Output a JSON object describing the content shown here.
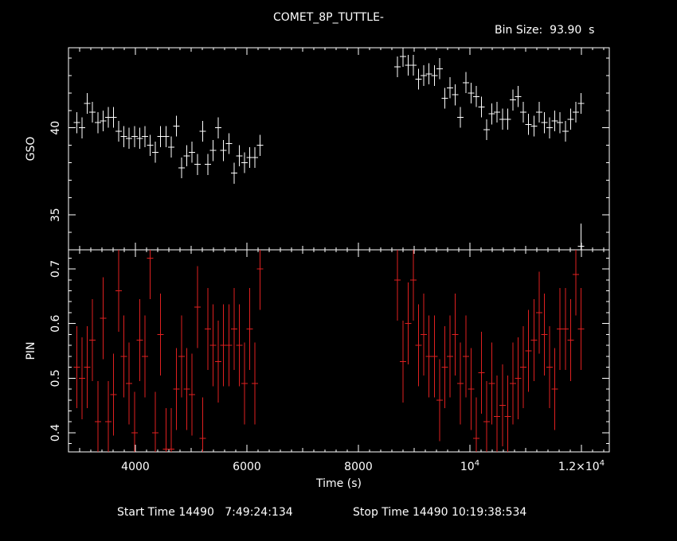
{
  "title": "COMET_8P_TUTTLE-",
  "bin_size_label": "Bin Size:  93.90  s",
  "start_time_label": "Start Time 14490   7:49:24:134",
  "stop_time_label": "Stop Time 14490 10:19:38:534",
  "chart_data": [
    {
      "panel": "top",
      "type": "scatter",
      "ylabel": "GSO",
      "xlim": [
        2800,
        12500
      ],
      "ylim": [
        33.0,
        44.6
      ],
      "yticks_major": [
        35,
        40
      ],
      "yticklabels": [
        "35",
        "40"
      ],
      "color": "#ffffff",
      "series": [
        {
          "x": [
            2949,
            3043,
            3137,
            3231,
            3325,
            3419,
            3513,
            3607,
            3701,
            3795,
            3889,
            3983,
            4077,
            4171,
            4265,
            4359,
            4453,
            4547,
            4641,
            4735,
            4829,
            4923,
            5017,
            5111,
            5205,
            5299,
            5393,
            5487,
            5581,
            5675,
            5769,
            5863,
            5957,
            6051,
            6145,
            6239
          ],
          "y": [
            40.3,
            40.0,
            41.4,
            40.9,
            40.3,
            40.4,
            40.6,
            40.6,
            39.8,
            39.5,
            39.4,
            39.5,
            39.4,
            39.5,
            39.0,
            38.6,
            39.5,
            39.5,
            38.9,
            40.1,
            37.7,
            38.4,
            38.6,
            37.9,
            39.8,
            37.9,
            38.7,
            40.0,
            38.7,
            39.1,
            37.4,
            38.4,
            38.0,
            38.3,
            38.3,
            39.0
          ],
          "yerr": 0.6
        },
        {
          "x": [
            8703,
            8797,
            8891,
            8985,
            9079,
            9173,
            9267,
            9361,
            9455,
            9549,
            9643,
            9737,
            9831,
            9925,
            10019,
            10113,
            10207,
            10301,
            10395,
            10489,
            10583,
            10677,
            10771,
            10865,
            10959,
            11053,
            11147,
            11241,
            11335,
            11429,
            11523,
            11617,
            11711,
            11805,
            11899,
            11993
          ],
          "y": [
            43.5,
            44.1,
            43.6,
            43.6,
            42.8,
            43.0,
            43.1,
            43.0,
            43.4,
            41.7,
            42.3,
            41.9,
            40.6,
            42.6,
            42.0,
            41.8,
            41.2,
            39.9,
            40.8,
            40.9,
            40.5,
            40.5,
            41.6,
            41.8,
            40.9,
            40.2,
            40.1,
            40.9,
            40.3,
            40.0,
            40.4,
            40.3,
            39.8,
            40.5,
            40.9,
            41.4
          ],
          "yerr": 0.6
        },
        {
          "x": [
            11993
          ],
          "y": [
            33.2
          ],
          "yerr": 1.3
        }
      ]
    },
    {
      "panel": "bottom",
      "type": "scatter",
      "xlabel": "Time (s)",
      "ylabel": "PIN",
      "xlim": [
        2800,
        12500
      ],
      "ylim": [
        0.365,
        0.735
      ],
      "yticks_major": [
        0.4,
        0.5,
        0.6,
        0.7
      ],
      "yticklabels": [
        "0.4",
        "0.5",
        "0.6",
        "0.7"
      ],
      "xticks_major": [
        4000,
        6000,
        8000,
        10000,
        12000
      ],
      "xticklabels": [
        "4000",
        "6000",
        "8000",
        "10^4",
        "1.2×10^4"
      ],
      "color": "#e02020",
      "series": [
        {
          "x": [
            2949,
            3043,
            3137,
            3231,
            3325,
            3419,
            3513,
            3607,
            3701,
            3795,
            3889,
            3983,
            4077,
            4171,
            4265,
            4359,
            4453,
            4547,
            4641,
            4735,
            4829,
            4923,
            5017,
            5111,
            5205,
            5299,
            5393,
            5487,
            5581,
            5675,
            5769,
            5863,
            5957,
            6051,
            6145,
            6239
          ],
          "y": [
            0.52,
            0.5,
            0.52,
            0.57,
            0.42,
            0.61,
            0.42,
            0.47,
            0.66,
            0.54,
            0.49,
            0.4,
            0.57,
            0.54,
            0.72,
            0.4,
            0.58,
            0.37,
            0.37,
            0.48,
            0.54,
            0.48,
            0.47,
            0.63,
            0.39,
            0.59,
            0.56,
            0.53,
            0.56,
            0.56,
            0.59,
            0.56,
            0.49,
            0.59,
            0.49,
            0.7
          ],
          "yerr": 0.075
        },
        {
          "x": [
            8703,
            8797,
            8891,
            8985,
            9079,
            9173,
            9267,
            9361,
            9455,
            9549,
            9643,
            9737,
            9831,
            9925,
            10019,
            10113,
            10207,
            10301,
            10395,
            10489,
            10583,
            10677,
            10771,
            10865,
            10959,
            11053,
            11147,
            11241,
            11335,
            11429,
            11523,
            11617,
            11711,
            11805,
            11899,
            11993
          ],
          "y": [
            0.68,
            0.53,
            0.6,
            0.68,
            0.56,
            0.58,
            0.54,
            0.54,
            0.46,
            0.52,
            0.54,
            0.58,
            0.49,
            0.54,
            0.48,
            0.39,
            0.51,
            0.42,
            0.49,
            0.43,
            0.45,
            0.43,
            0.49,
            0.5,
            0.52,
            0.55,
            0.57,
            0.62,
            0.58,
            0.52,
            0.48,
            0.59,
            0.59,
            0.57,
            0.69,
            0.59
          ],
          "yerr": 0.075
        }
      ]
    }
  ]
}
